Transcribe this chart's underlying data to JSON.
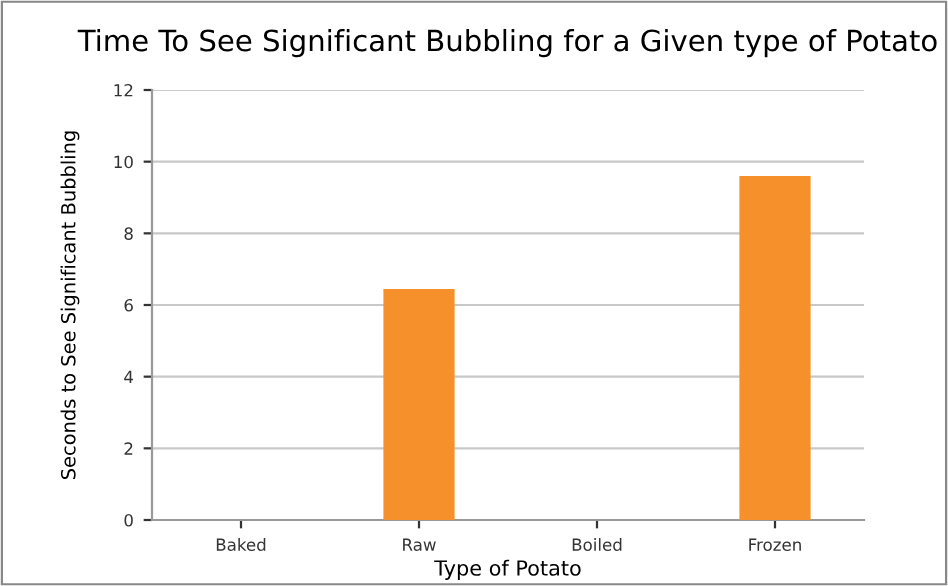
{
  "chart_data": {
    "type": "bar",
    "title": "Time To See Significant Bubbling for a Given type of Potato",
    "xlabel": "Type of Potato",
    "ylabel": "Seconds to See Significant Bubbling",
    "categories": [
      "Baked",
      "Raw",
      "Boiled",
      "Frozen"
    ],
    "values": [
      0,
      6.45,
      0,
      9.6
    ],
    "color": "#f5902a",
    "ylim": [
      0,
      12
    ],
    "yticks": [
      0,
      2,
      4,
      6,
      8,
      10,
      12
    ],
    "grid": "y"
  }
}
